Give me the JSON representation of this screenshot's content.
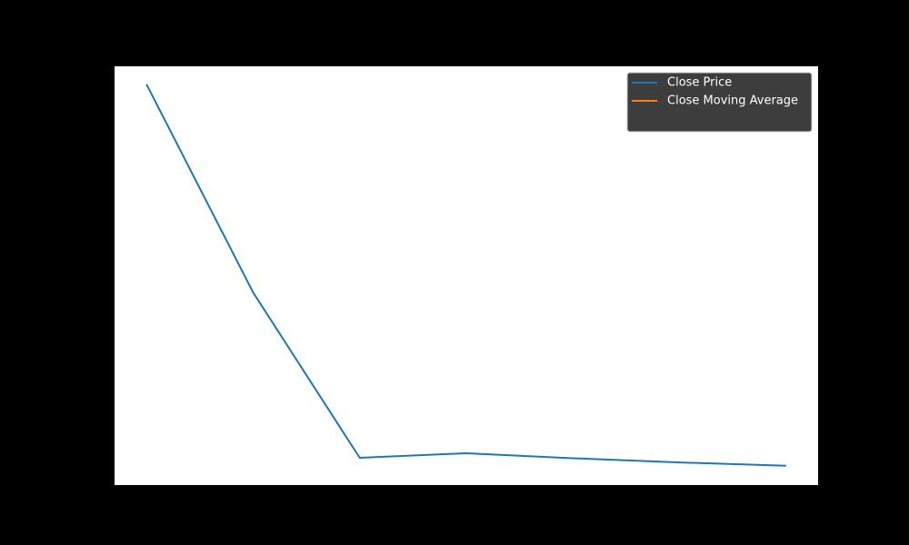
{
  "chart_data": {
    "type": "line",
    "x": [
      0,
      1,
      2,
      3,
      4,
      5,
      6
    ],
    "series": [
      {
        "name": "Close Price",
        "color": "#1f77b4",
        "values": [
          95.7,
          46.0,
          6.5,
          7.6,
          6.4,
          5.4,
          4.6
        ]
      },
      {
        "name": "Close Moving Average",
        "color": "#ff7f0e",
        "values": [
          null,
          null,
          null,
          null,
          null,
          null,
          null
        ]
      }
    ],
    "xlim": [
      -0.3,
      6.3
    ],
    "ylim": [
      0,
      100
    ],
    "legend": "upper right"
  }
}
